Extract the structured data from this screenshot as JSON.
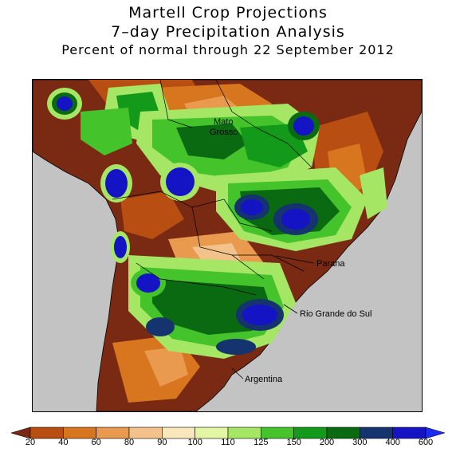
{
  "title": {
    "line1": "Martell Crop Projections",
    "line2": "7–day Precipitation Analysis",
    "line3": "Percent of normal through 22 September 2012"
  },
  "places": {
    "mato": "Mato",
    "grosso": "Grosso",
    "parana": "Parana",
    "rio_grande_do_sul": "Rio Grande do Sul",
    "argentina": "Argentina"
  },
  "legend": {
    "ticks": [
      "20",
      "40",
      "60",
      "80",
      "90",
      "100",
      "110",
      "125",
      "150",
      "200",
      "300",
      "400",
      "600"
    ],
    "colors": [
      "#7a2a12",
      "#b84e12",
      "#d8761f",
      "#e99a4e",
      "#f2c28a",
      "#fbe7bd",
      "#e3f6a4",
      "#a5e665",
      "#45c32b",
      "#139a1a",
      "#0a6a12",
      "#15336f",
      "#1414c4",
      "#1c2af5"
    ]
  },
  "colors": {
    "background": "#c3c3c3",
    "dry_dark": "#7a2a12",
    "wet_dark": "#1414c4"
  }
}
